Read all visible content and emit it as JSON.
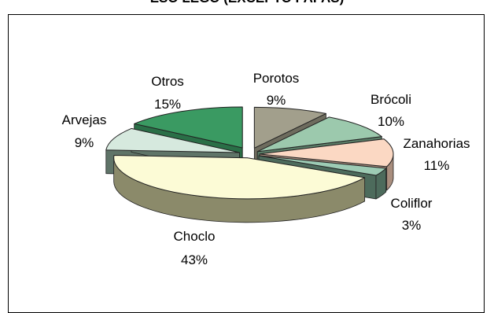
{
  "chart_data": {
    "type": "pie",
    "title": "ESO LEGO (EXCEPTO PAPAS)",
    "slices": [
      {
        "label": "Porotos",
        "percent_label": "9%",
        "value": 9,
        "top_color": "#a29f8c",
        "side_color": "#6e6c5e"
      },
      {
        "label": "Brócoli",
        "percent_label": "10%",
        "value": 10,
        "top_color": "#9cc9ad",
        "side_color": "#5a7d67"
      },
      {
        "label": "Zanahorias",
        "percent_label": "11%",
        "value": 11,
        "top_color": "#fbd8c3",
        "side_color": "#a98e7e"
      },
      {
        "label": "Coliflor",
        "percent_label": "3%",
        "value": 3,
        "top_color": "#9dcbb4",
        "side_color": "#4d6b5c"
      },
      {
        "label": "Choclo",
        "percent_label": "43%",
        "value": 43,
        "top_color": "#fcfbd6",
        "side_color": "#8b8a6a"
      },
      {
        "label": "Arvejas",
        "percent_label": "9%",
        "value": 9,
        "top_color": "#d6e9de",
        "side_color": "#5f7468"
      },
      {
        "label": "Otros",
        "percent_label": "15%",
        "value": 15,
        "top_color": "#3a9a62",
        "side_color": "#2a6f47"
      }
    ]
  }
}
